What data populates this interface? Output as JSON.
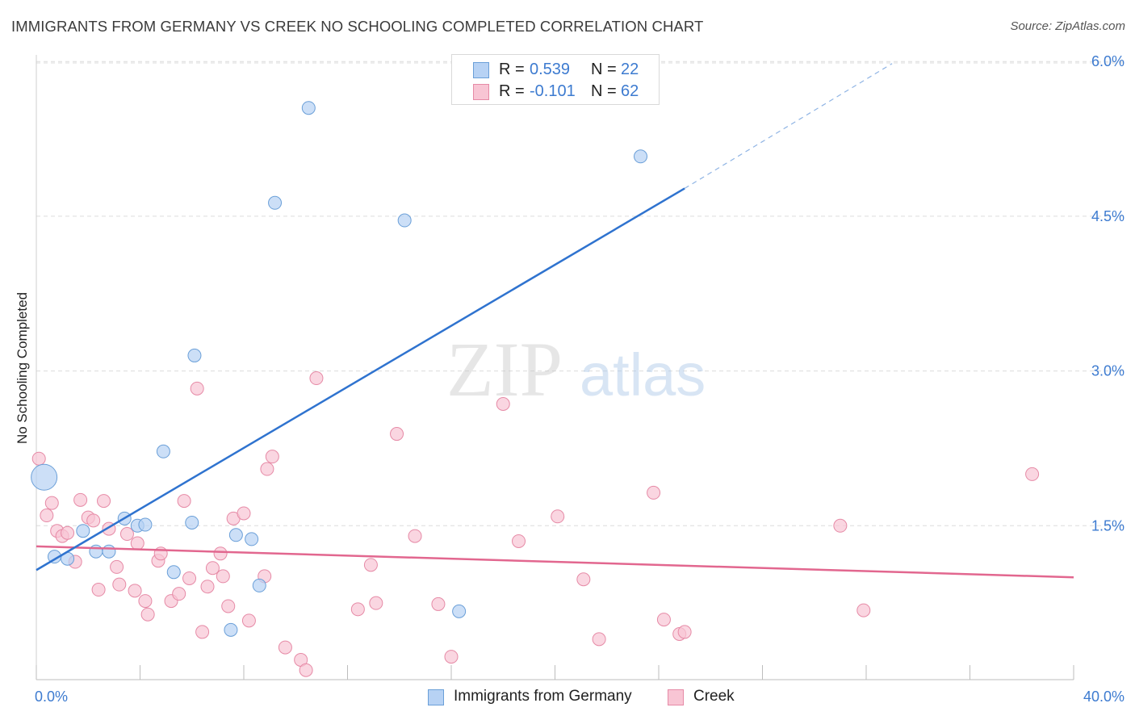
{
  "header": {
    "title": "IMMIGRANTS FROM GERMANY VS CREEK NO SCHOOLING COMPLETED CORRELATION CHART",
    "source": "Source: ZipAtlas.com"
  },
  "watermark": {
    "zip": "ZIP",
    "atlas": "atlas"
  },
  "legend": {
    "r_label": "R =",
    "n_label": "N =",
    "rows": [
      {
        "r": "0.539",
        "n": "22"
      },
      {
        "r": "-0.101",
        "n": "62"
      }
    ]
  },
  "colors": {
    "germany_fill": "#b7d2f4",
    "germany_stroke": "#6a9fd8",
    "germany_line": "#2f73cf",
    "creek_fill": "#f8c5d4",
    "creek_stroke": "#e68aa6",
    "creek_line": "#e2678f",
    "tick_label": "#3d7bd0",
    "grid": "#dcdcdc"
  },
  "chart_data": {
    "type": "scatter",
    "title": "IMMIGRANTS FROM GERMANY VS CREEK NO SCHOOLING COMPLETED CORRELATION CHART",
    "xlabel": "",
    "ylabel": "No Schooling Completed",
    "xlim": [
      0,
      40
    ],
    "ylim": [
      0,
      6.25
    ],
    "x_tick_labels": [
      "0.0%",
      "40.0%"
    ],
    "y_ticks": [
      1.5,
      3.0,
      4.5,
      6.0
    ],
    "y_tick_labels": [
      "1.5%",
      "3.0%",
      "4.5%",
      "6.0%"
    ],
    "grid": "horizontal dashed",
    "legend_position": "top-center",
    "series": [
      {
        "name": "Immigrants from Germany",
        "r": 0.539,
        "n": 22,
        "points": [
          [
            0.3,
            1.97,
            "large"
          ],
          [
            0.7,
            1.2
          ],
          [
            1.2,
            1.18
          ],
          [
            1.8,
            1.45
          ],
          [
            2.3,
            1.25
          ],
          [
            2.8,
            1.25
          ],
          [
            3.4,
            1.57
          ],
          [
            3.9,
            1.5
          ],
          [
            4.2,
            1.51
          ],
          [
            4.9,
            2.22
          ],
          [
            5.3,
            1.05
          ],
          [
            6.0,
            1.53
          ],
          [
            6.1,
            3.15
          ],
          [
            7.5,
            0.49
          ],
          [
            7.7,
            1.41
          ],
          [
            8.3,
            1.37
          ],
          [
            8.6,
            0.92
          ],
          [
            9.2,
            4.63
          ],
          [
            10.5,
            5.55
          ],
          [
            14.2,
            4.46
          ],
          [
            16.3,
            0.67
          ],
          [
            23.3,
            5.08
          ]
        ],
        "trend": {
          "x0": 0.0,
          "y0": 1.07,
          "x1": 25.0,
          "y1": 4.77,
          "dashed_to_x": 33.0,
          "dashed_to_y": 5.98
        }
      },
      {
        "name": "Creek",
        "r": -0.101,
        "n": 62,
        "points": [
          [
            0.1,
            2.15
          ],
          [
            0.4,
            1.6
          ],
          [
            0.6,
            1.72
          ],
          [
            0.8,
            1.45
          ],
          [
            1.0,
            1.4
          ],
          [
            1.2,
            1.43
          ],
          [
            1.5,
            1.15
          ],
          [
            1.7,
            1.75
          ],
          [
            2.0,
            1.58
          ],
          [
            2.2,
            1.55
          ],
          [
            2.4,
            0.88
          ],
          [
            2.6,
            1.74
          ],
          [
            2.8,
            1.47
          ],
          [
            3.1,
            1.1
          ],
          [
            3.2,
            0.93
          ],
          [
            3.5,
            1.42
          ],
          [
            3.8,
            0.87
          ],
          [
            3.9,
            1.33
          ],
          [
            4.2,
            0.77
          ],
          [
            4.3,
            0.64
          ],
          [
            4.7,
            1.16
          ],
          [
            4.8,
            1.23
          ],
          [
            5.2,
            0.77
          ],
          [
            5.5,
            0.84
          ],
          [
            5.7,
            1.74
          ],
          [
            5.9,
            0.99
          ],
          [
            6.2,
            2.83
          ],
          [
            6.4,
            0.47
          ],
          [
            6.6,
            0.91
          ],
          [
            6.8,
            1.09
          ],
          [
            7.1,
            1.23
          ],
          [
            7.2,
            1.01
          ],
          [
            7.4,
            0.72
          ],
          [
            7.6,
            1.57
          ],
          [
            8.0,
            1.62
          ],
          [
            8.2,
            0.58
          ],
          [
            8.8,
            1.01
          ],
          [
            8.9,
            2.05
          ],
          [
            9.1,
            2.17
          ],
          [
            9.6,
            0.32
          ],
          [
            10.2,
            0.2
          ],
          [
            10.4,
            0.1
          ],
          [
            10.8,
            2.93
          ],
          [
            12.4,
            0.69
          ],
          [
            12.9,
            1.12
          ],
          [
            13.1,
            0.75
          ],
          [
            13.9,
            2.39
          ],
          [
            14.6,
            1.4
          ],
          [
            15.5,
            0.74
          ],
          [
            16.0,
            0.23
          ],
          [
            18.0,
            2.68
          ],
          [
            18.6,
            1.35
          ],
          [
            20.1,
            1.59
          ],
          [
            21.1,
            0.98
          ],
          [
            21.7,
            0.4
          ],
          [
            23.8,
            1.82
          ],
          [
            24.2,
            0.59
          ],
          [
            24.8,
            0.45
          ],
          [
            25.0,
            0.47
          ],
          [
            31.0,
            1.5
          ],
          [
            31.9,
            0.68
          ],
          [
            38.4,
            2.0
          ]
        ],
        "trend": {
          "x0": 0.0,
          "y0": 1.3,
          "x1": 40.0,
          "y1": 1.0
        }
      }
    ]
  },
  "bottom_legend": {
    "items": [
      {
        "label": "Immigrants from Germany"
      },
      {
        "label": "Creek"
      }
    ]
  }
}
